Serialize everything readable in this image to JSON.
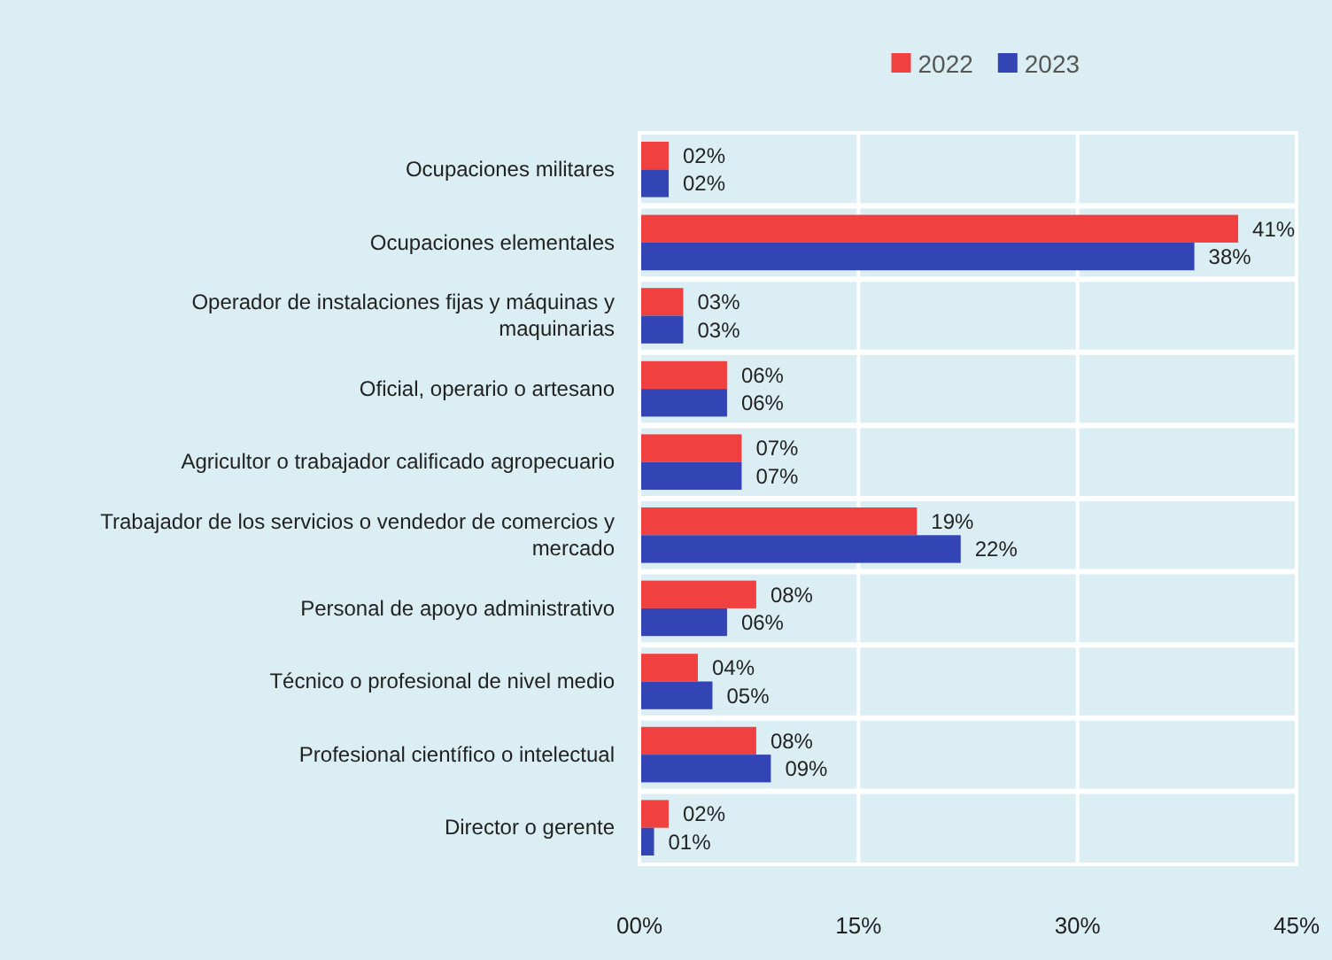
{
  "chart_data": {
    "type": "bar",
    "orientation": "horizontal",
    "categories": [
      "Ocupaciones militares",
      "Ocupaciones elementales",
      "Operador de instalaciones fijas y máquinas y maquinarias",
      "Oficial, operario o artesano",
      "Agricultor o trabajador calificado agropecuario",
      "Trabajador de los servicios o vendedor de comercios y mercado",
      "Personal de apoyo administrativo",
      "Técnico o profesional de nivel medio",
      "Profesional científico o intelectual",
      "Director o gerente"
    ],
    "series": [
      {
        "name": "2022",
        "color": "#f04040",
        "values": [
          2,
          41,
          3,
          6,
          7,
          19,
          8,
          4,
          8,
          2
        ],
        "value_labels": [
          "02%",
          "41%",
          "03%",
          "06%",
          "07%",
          "19%",
          "08%",
          "04%",
          "08%",
          "02%"
        ]
      },
      {
        "name": "2023",
        "color": "#3344b4",
        "values": [
          2,
          38,
          3,
          6,
          7,
          22,
          6,
          5,
          9,
          1
        ],
        "value_labels": [
          "02%",
          "38%",
          "03%",
          "06%",
          "07%",
          "22%",
          "06%",
          "05%",
          "09%",
          "01%"
        ]
      }
    ],
    "xlim": [
      0,
      45
    ],
    "xticks": [
      {
        "value": 0,
        "label": "00%"
      },
      {
        "value": 15,
        "label": "15%"
      },
      {
        "value": 30,
        "label": "30%"
      },
      {
        "value": 45,
        "label": "45%"
      }
    ],
    "grid": "x",
    "legend": "top"
  }
}
